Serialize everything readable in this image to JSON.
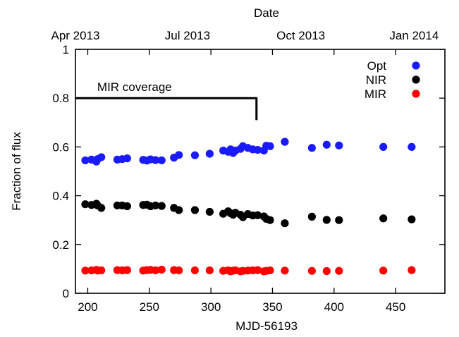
{
  "chart_data": {
    "type": "scatter",
    "title": "",
    "xlabel": "MJD-56193",
    "ylabel": "Fraction of flux",
    "top_axis_label": "Date",
    "xlim": [
      190,
      490
    ],
    "ylim": [
      0,
      1
    ],
    "x_ticks": [
      200,
      250,
      300,
      350,
      400,
      450
    ],
    "y_ticks": [
      {
        "value": 0,
        "label": "0"
      },
      {
        "value": 0.2,
        "label": "0.2"
      },
      {
        "value": 0.4,
        "label": "0.4"
      },
      {
        "value": 0.6,
        "label": "0.6"
      },
      {
        "value": 0.8,
        "label": "0.8"
      },
      {
        "value": 1,
        "label": "1"
      }
    ],
    "top_ticks": [
      {
        "x": 190,
        "label": "Apr 2013"
      },
      {
        "x": 281,
        "label": "Jul 2013"
      },
      {
        "x": 373,
        "label": "Oct 2013"
      },
      {
        "x": 465,
        "label": "Jan 2014"
      }
    ],
    "grid": false,
    "legend_position": "top-right",
    "annotation": {
      "label": "MIR coverage",
      "x_start": 190,
      "x_end": 337,
      "y": 0.8,
      "y_drop": 0.71
    },
    "series": [
      {
        "name": "Opt",
        "color": "#1a1aff",
        "points": [
          [
            198,
            0.545
          ],
          [
            203,
            0.548
          ],
          [
            207,
            0.54
          ],
          [
            208,
            0.55
          ],
          [
            211,
            0.558
          ],
          [
            224,
            0.548
          ],
          [
            228,
            0.55
          ],
          [
            232,
            0.553
          ],
          [
            245,
            0.547
          ],
          [
            248,
            0.544
          ],
          [
            251,
            0.549
          ],
          [
            255,
            0.546
          ],
          [
            260,
            0.545
          ],
          [
            270,
            0.556
          ],
          [
            274,
            0.567
          ],
          [
            287,
            0.566
          ],
          [
            299,
            0.572
          ],
          [
            310,
            0.585
          ],
          [
            314,
            0.58
          ],
          [
            316,
            0.59
          ],
          [
            318,
            0.575
          ],
          [
            320,
            0.585
          ],
          [
            324,
            0.592
          ],
          [
            326,
            0.603
          ],
          [
            330,
            0.596
          ],
          [
            334,
            0.59
          ],
          [
            338,
            0.588
          ],
          [
            343,
            0.585
          ],
          [
            345,
            0.605
          ],
          [
            348,
            0.603
          ],
          [
            360,
            0.621
          ],
          [
            382,
            0.596
          ],
          [
            394,
            0.609
          ],
          [
            404,
            0.606
          ],
          [
            440,
            0.6
          ],
          [
            463,
            0.6
          ]
        ]
      },
      {
        "name": "NIR",
        "color": "#000000",
        "points": [
          [
            198,
            0.365
          ],
          [
            203,
            0.362
          ],
          [
            207,
            0.367
          ],
          [
            208,
            0.36
          ],
          [
            211,
            0.35
          ],
          [
            224,
            0.36
          ],
          [
            228,
            0.36
          ],
          [
            232,
            0.357
          ],
          [
            245,
            0.362
          ],
          [
            248,
            0.363
          ],
          [
            251,
            0.357
          ],
          [
            255,
            0.36
          ],
          [
            260,
            0.358
          ],
          [
            270,
            0.35
          ],
          [
            274,
            0.341
          ],
          [
            287,
            0.341
          ],
          [
            299,
            0.334
          ],
          [
            310,
            0.326
          ],
          [
            314,
            0.336
          ],
          [
            316,
            0.328
          ],
          [
            318,
            0.322
          ],
          [
            320,
            0.33
          ],
          [
            324,
            0.322
          ],
          [
            326,
            0.312
          ],
          [
            330,
            0.325
          ],
          [
            334,
            0.319
          ],
          [
            338,
            0.32
          ],
          [
            343,
            0.315
          ],
          [
            345,
            0.305
          ],
          [
            348,
            0.3
          ],
          [
            360,
            0.287
          ],
          [
            382,
            0.314
          ],
          [
            394,
            0.301
          ],
          [
            404,
            0.3
          ],
          [
            440,
            0.307
          ],
          [
            463,
            0.303
          ]
        ]
      },
      {
        "name": "MIR",
        "color": "#ff0000",
        "points": [
          [
            198,
            0.093
          ],
          [
            203,
            0.094
          ],
          [
            207,
            0.096
          ],
          [
            208,
            0.093
          ],
          [
            211,
            0.094
          ],
          [
            224,
            0.095
          ],
          [
            228,
            0.094
          ],
          [
            232,
            0.095
          ],
          [
            245,
            0.093
          ],
          [
            248,
            0.095
          ],
          [
            251,
            0.096
          ],
          [
            255,
            0.094
          ],
          [
            260,
            0.097
          ],
          [
            270,
            0.095
          ],
          [
            274,
            0.094
          ],
          [
            287,
            0.094
          ],
          [
            299,
            0.094
          ],
          [
            310,
            0.092
          ],
          [
            314,
            0.094
          ],
          [
            316,
            0.09
          ],
          [
            318,
            0.093
          ],
          [
            320,
            0.094
          ],
          [
            324,
            0.09
          ],
          [
            326,
            0.092
          ],
          [
            330,
            0.093
          ],
          [
            334,
            0.094
          ],
          [
            338,
            0.095
          ],
          [
            343,
            0.09
          ],
          [
            345,
            0.092
          ],
          [
            348,
            0.094
          ],
          [
            360,
            0.093
          ],
          [
            382,
            0.092
          ],
          [
            394,
            0.091
          ],
          [
            404,
            0.092
          ],
          [
            440,
            0.093
          ],
          [
            463,
            0.095
          ]
        ]
      }
    ]
  }
}
